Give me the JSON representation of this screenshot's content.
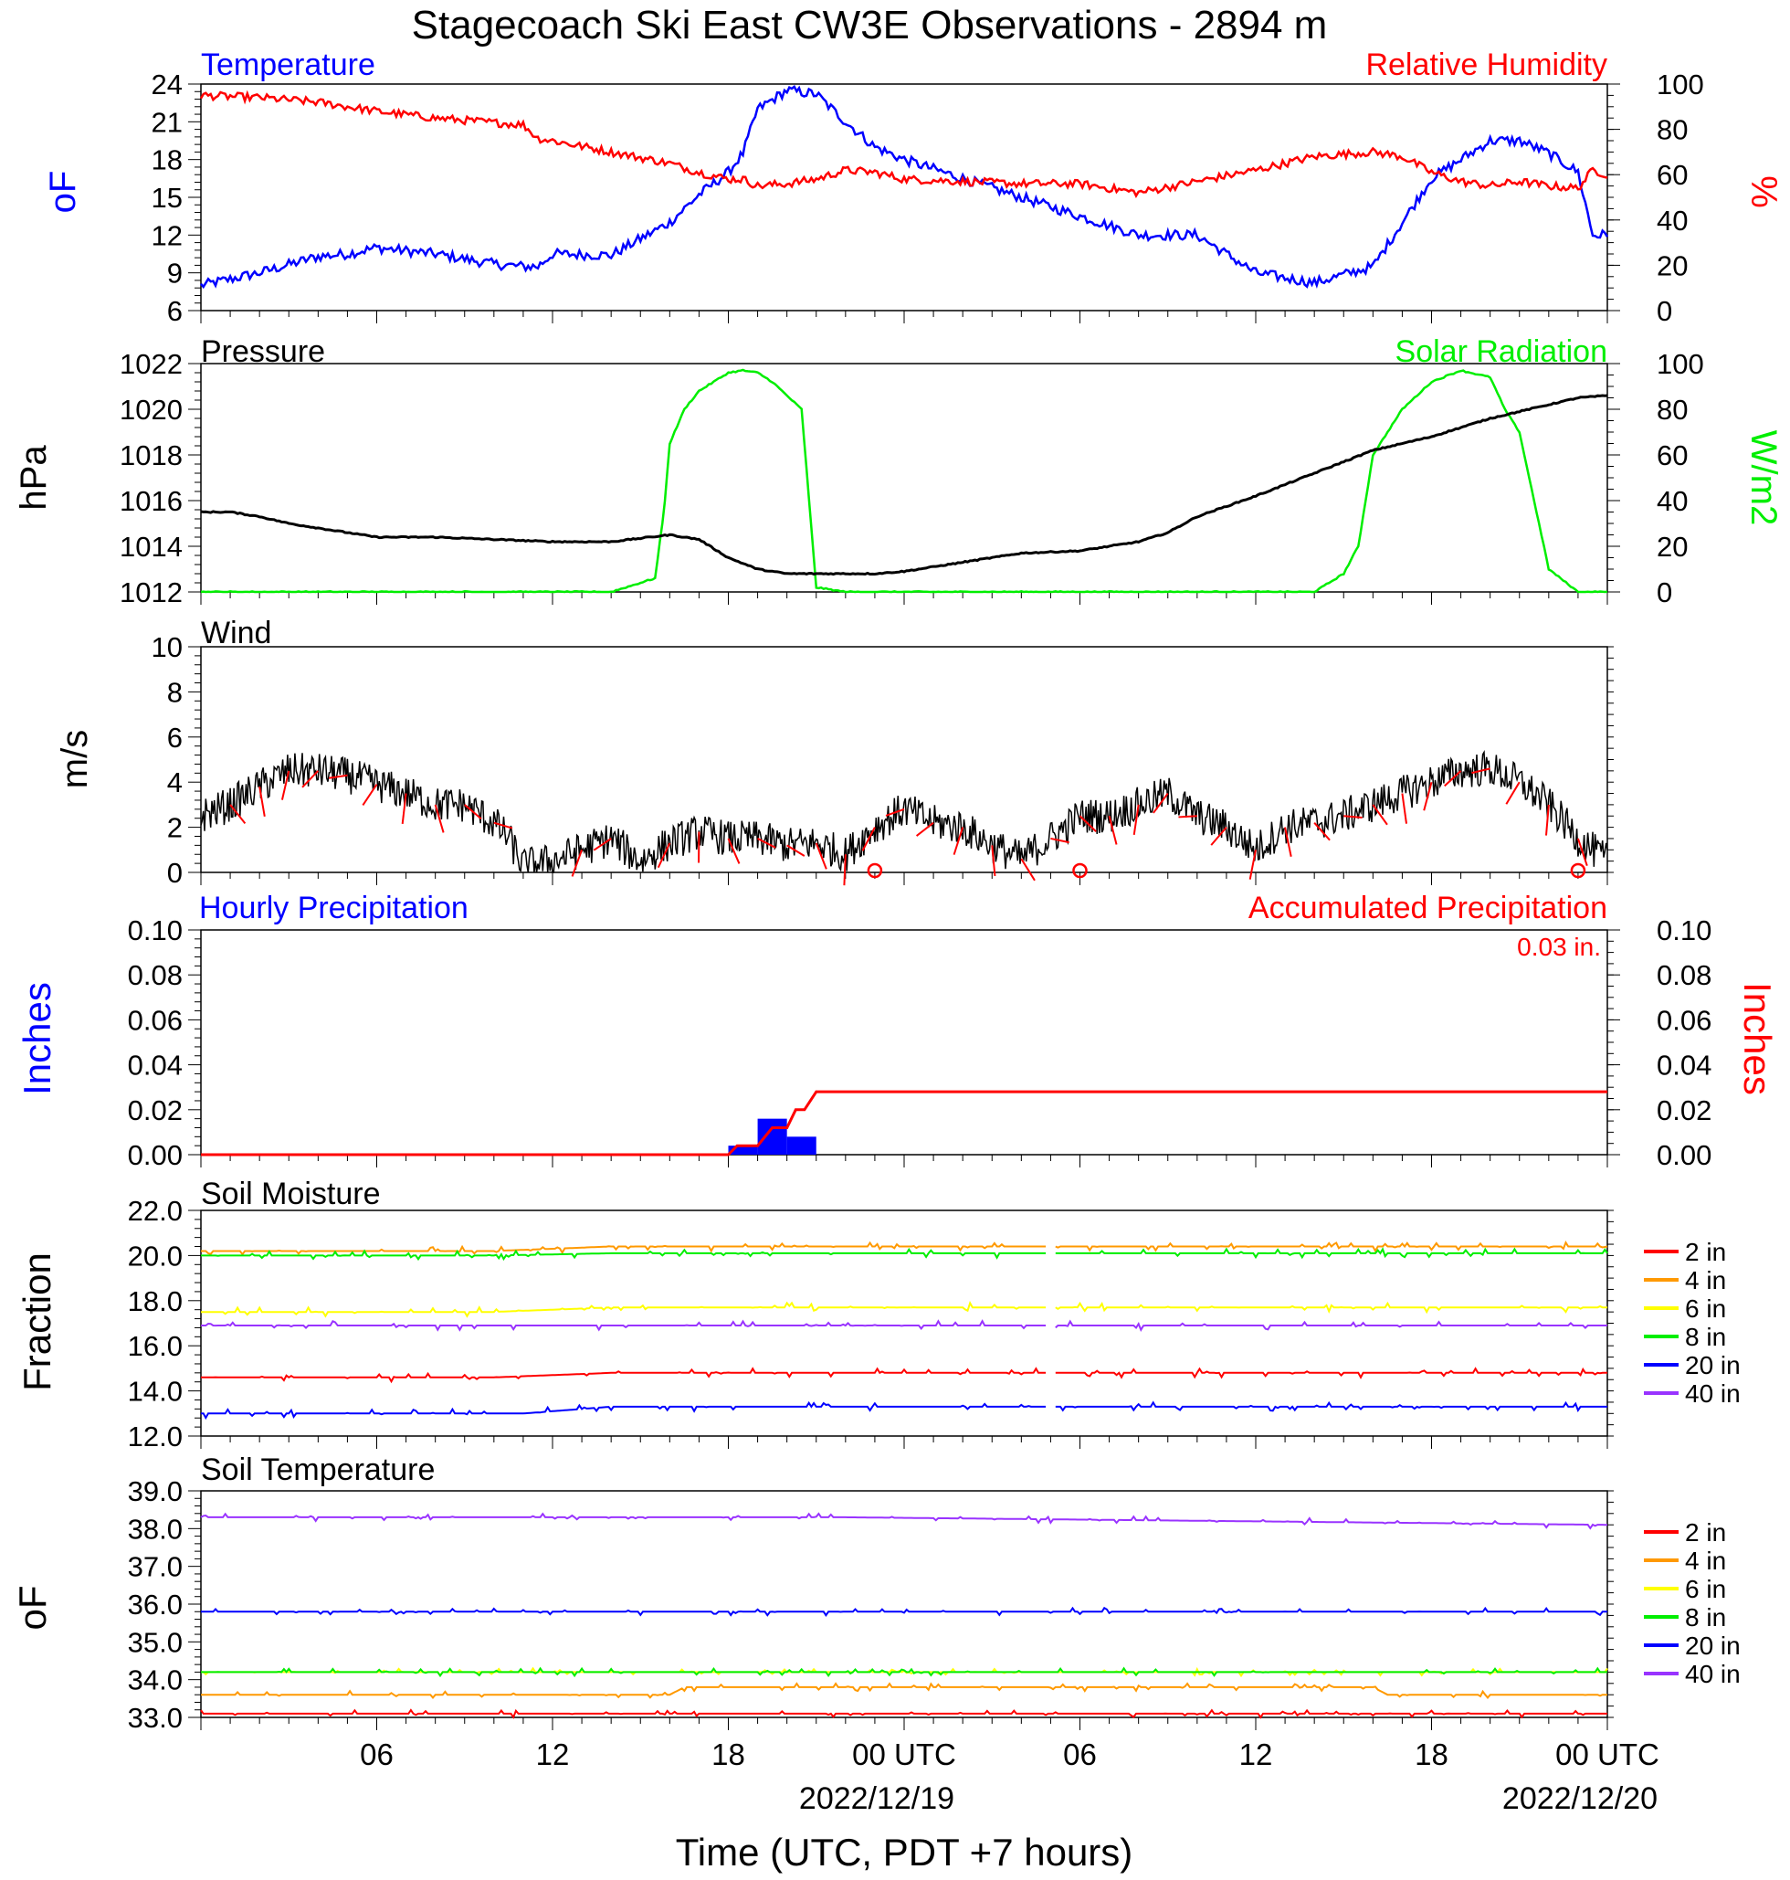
{
  "title": "Stagecoach Ski East CW3E Observations - 2894 m",
  "x_axis": {
    "title": "Time (UTC, PDT +7 hours)",
    "ticks": [
      "06",
      "12",
      "18",
      "00 UTC",
      "06",
      "12",
      "18",
      "00 UTC"
    ],
    "dates": [
      "2022/12/19",
      "2022/12/20"
    ]
  },
  "colors": {
    "blue": "#0000ff",
    "red": "#ff0000",
    "green": "#00ee00",
    "black": "#000000",
    "orange": "#ff9900",
    "yellow": "#ffff00",
    "purple": "#9933ff"
  },
  "chart_data": [
    {
      "type": "line",
      "left_title": "Temperature",
      "right_title": "Relative Humidity",
      "ylabel_left": "oF",
      "ylabel_right": "%",
      "ylim_left": [
        6,
        24
      ],
      "yticks_left": [
        "24",
        "21",
        "18",
        "15",
        "12",
        "9",
        "6"
      ],
      "ylim_right": [
        0,
        100
      ],
      "yticks_right": [
        "100",
        "80",
        "60",
        "40",
        "20",
        "0"
      ],
      "x_hours": [
        0,
        2,
        4,
        5,
        6,
        8,
        10,
        11,
        11.5,
        12,
        14,
        16,
        17,
        18,
        18.5,
        19,
        20,
        21,
        22,
        23,
        24,
        26,
        28,
        30,
        32,
        34,
        36,
        38,
        40,
        41,
        42,
        43,
        44,
        45,
        46,
        47,
        47.5,
        48
      ],
      "series": [
        {
          "name": "Temperature",
          "color": "blue",
          "axis": "left",
          "values": [
            8,
            9,
            10.3,
            10.5,
            11,
            10.5,
            9.7,
            9.5,
            9.5,
            10.5,
            10.4,
            13,
            15.2,
            17,
            18.5,
            22,
            23.5,
            23.2,
            21,
            19,
            18,
            16.5,
            15,
            13.5,
            12,
            12,
            9,
            8.2,
            9.5,
            13,
            16.5,
            18,
            19.5,
            19.5,
            18.5,
            17,
            12,
            12
          ]
        },
        {
          "name": "Relative Humidity",
          "color": "red",
          "axis": "right",
          "values": [
            95,
            94,
            92,
            90,
            88,
            85,
            83,
            82,
            76,
            75,
            70,
            65,
            61,
            58,
            58,
            55,
            56,
            58,
            62,
            61,
            58,
            57,
            56,
            56,
            52,
            57,
            62,
            68,
            70,
            68,
            61,
            57,
            55,
            57,
            55,
            54,
            62,
            60
          ]
        }
      ]
    },
    {
      "type": "line",
      "left_title": "Pressure",
      "right_title": "Solar Radiation",
      "ylabel_left": "hPa",
      "ylabel_right": "W/m2",
      "ylim_left": [
        1012,
        1022
      ],
      "yticks_left": [
        "1022",
        "1020",
        "1018",
        "1016",
        "1014",
        "1012"
      ],
      "ylim_right": [
        0,
        100
      ],
      "yticks_right": [
        "100",
        "80",
        "60",
        "40",
        "20",
        "0"
      ],
      "series": [
        {
          "name": "Pressure",
          "color": "black",
          "axis": "left",
          "x_hours": [
            0,
            1,
            2,
            3,
            4,
            6,
            8,
            10,
            12,
            14,
            16,
            17,
            18,
            19,
            20,
            21,
            22,
            23,
            24,
            26,
            28,
            30,
            32,
            33,
            34,
            36,
            38,
            40,
            41,
            42,
            43,
            44,
            45,
            46,
            47,
            48
          ],
          "values": [
            1015.5,
            1015.5,
            1015.3,
            1015,
            1014.8,
            1014.4,
            1014.4,
            1014.3,
            1014.2,
            1014.2,
            1014.5,
            1014.3,
            1013.5,
            1013,
            1012.8,
            1012.8,
            1012.8,
            1012.8,
            1012.9,
            1013.3,
            1013.7,
            1013.8,
            1014.2,
            1014.6,
            1015.3,
            1016.2,
            1017.2,
            1018.2,
            1018.5,
            1018.8,
            1019.2,
            1019.6,
            1019.9,
            1020.2,
            1020.5,
            1020.6
          ]
        },
        {
          "name": "Solar Radiation",
          "color": "green",
          "axis": "right",
          "x_hours": [
            0,
            13.5,
            14,
            15.5,
            15.8,
            16,
            16.5,
            17,
            17.5,
            18,
            18.5,
            19,
            19.5,
            20,
            20.5,
            21,
            22,
            23.5,
            24,
            38,
            39,
            39.5,
            40,
            41,
            42,
            43,
            44,
            44.5,
            45,
            46,
            47,
            48
          ],
          "values": [
            0,
            0,
            0,
            6,
            35,
            65,
            80,
            88,
            92,
            96,
            97,
            96,
            92,
            86,
            80,
            2,
            0,
            0,
            0,
            0,
            8,
            20,
            60,
            80,
            92,
            97,
            94,
            80,
            70,
            10,
            0,
            0
          ]
        }
      ]
    },
    {
      "type": "line",
      "left_title": "Wind",
      "ylabel_left": "m/s",
      "ylim_left": [
        0,
        10
      ],
      "yticks_left": [
        "10",
        "8",
        "6",
        "4",
        "2",
        "0"
      ],
      "x_hours": [
        0,
        1,
        2,
        3,
        4,
        5,
        6,
        7,
        8,
        9,
        10,
        10.5,
        11,
        12,
        13,
        14,
        15,
        16,
        17,
        18,
        19,
        20,
        21,
        22,
        23,
        24,
        25,
        26,
        27,
        28,
        29,
        30,
        31,
        32,
        33,
        34,
        35,
        36,
        37,
        38,
        39,
        40,
        41,
        42,
        43,
        44,
        45,
        46,
        47,
        48
      ],
      "series": [
        {
          "name": "Wind",
          "color": "black",
          "axis": "left",
          "values": [
            2.5,
            3,
            3.8,
            4.5,
            4.5,
            4.3,
            3.9,
            3.5,
            3,
            3,
            2.2,
            1.5,
            0.3,
            0.5,
            1,
            1.5,
            0.5,
            1.3,
            1.8,
            1.5,
            1.5,
            1.2,
            1.3,
            0.8,
            2,
            2.8,
            2.2,
            2,
            1.2,
            0.6,
            1.5,
            2.5,
            2.5,
            3,
            3.5,
            2.5,
            2,
            1,
            2,
            2.2,
            2.5,
            3,
            3.5,
            4,
            4.5,
            4.6,
            4,
            3,
            1.5,
            0.5
          ]
        }
      ]
    },
    {
      "type": "bar",
      "left_title": "Hourly Precipitation",
      "right_title": "Accumulated Precipitation",
      "total_label": "0.03 in.",
      "ylabel_left": "Inches",
      "ylabel_right": "Inches",
      "ylim_left": [
        0,
        0.1
      ],
      "yticks_left": [
        "0.10",
        "0.08",
        "0.06",
        "0.04",
        "0.02",
        "0.00"
      ],
      "ylim_right": [
        0,
        0.1
      ],
      "yticks_right": [
        "0.10",
        "0.08",
        "0.06",
        "0.04",
        "0.02",
        "0.00"
      ],
      "bars": [
        {
          "x_start": 18,
          "x_end": 19,
          "value": 0.004
        },
        {
          "x_start": 19,
          "x_end": 20,
          "value": 0.016
        },
        {
          "x_start": 20,
          "x_end": 21,
          "value": 0.008
        }
      ],
      "series": [
        {
          "name": "Accumulated Precipitation",
          "color": "red",
          "axis": "right",
          "x_hours": [
            0,
            18,
            18.3,
            19,
            19.5,
            20,
            20.3,
            20.6,
            21,
            48
          ],
          "values": [
            0,
            0,
            0.004,
            0.004,
            0.012,
            0.012,
            0.02,
            0.02,
            0.028,
            0.028
          ]
        }
      ]
    },
    {
      "type": "line",
      "left_title": "Soil Moisture",
      "ylabel_left": "Fraction",
      "ylim_left": [
        12,
        22
      ],
      "yticks_left": [
        "22.0",
        "20.0",
        "18.0",
        "16.0",
        "14.0",
        "12.0"
      ],
      "legend": [
        "2 in",
        "4 in",
        "6 in",
        "8 in",
        "20 in",
        "40 in"
      ],
      "series": [
        {
          "name": "2 in",
          "color": "red",
          "x_hours": [
            0,
            10,
            14,
            48
          ],
          "values": [
            14.6,
            14.6,
            14.8,
            14.8
          ]
        },
        {
          "name": "4 in",
          "color": "orange",
          "x_hours": [
            0,
            10,
            14,
            48
          ],
          "values": [
            20.2,
            20.2,
            20.4,
            20.4
          ]
        },
        {
          "name": "6 in",
          "color": "yellow",
          "x_hours": [
            0,
            10,
            14,
            48
          ],
          "values": [
            17.5,
            17.5,
            17.7,
            17.7
          ]
        },
        {
          "name": "8 in",
          "color": "green",
          "x_hours": [
            0,
            10,
            14,
            48
          ],
          "values": [
            20.0,
            20.0,
            20.1,
            20.1
          ]
        },
        {
          "name": "20 in",
          "color": "blue",
          "x_hours": [
            0,
            11,
            14,
            48
          ],
          "values": [
            13.0,
            13.0,
            13.3,
            13.3
          ]
        },
        {
          "name": "40 in",
          "color": "purple",
          "x_hours": [
            0,
            48
          ],
          "values": [
            16.9,
            16.9
          ]
        }
      ]
    },
    {
      "type": "line",
      "left_title": "Soil Temperature",
      "ylabel_left": "oF",
      "ylim_left": [
        33,
        39
      ],
      "yticks_left": [
        "39.0",
        "38.0",
        "37.0",
        "36.0",
        "35.0",
        "34.0",
        "33.0"
      ],
      "legend": [
        "2 in",
        "4 in",
        "6 in",
        "8 in",
        "20 in",
        "40 in"
      ],
      "series": [
        {
          "name": "2 in",
          "color": "red",
          "x_hours": [
            0,
            48
          ],
          "values": [
            33.1,
            33.1
          ]
        },
        {
          "name": "4 in",
          "color": "orange",
          "x_hours": [
            0,
            16,
            16.5,
            40,
            40.5,
            48
          ],
          "values": [
            33.6,
            33.6,
            33.8,
            33.8,
            33.6,
            33.6
          ]
        },
        {
          "name": "6 in",
          "color": "yellow",
          "x_hours": [
            0,
            48
          ],
          "values": [
            34.2,
            34.2
          ]
        },
        {
          "name": "8 in",
          "color": "green",
          "x_hours": [
            0,
            48
          ],
          "values": [
            34.2,
            34.2
          ]
        },
        {
          "name": "20 in",
          "color": "blue",
          "x_hours": [
            0,
            48
          ],
          "values": [
            35.8,
            35.8
          ]
        },
        {
          "name": "40 in",
          "color": "purple",
          "x_hours": [
            0,
            22,
            48
          ],
          "values": [
            38.3,
            38.3,
            38.1
          ]
        }
      ]
    }
  ]
}
